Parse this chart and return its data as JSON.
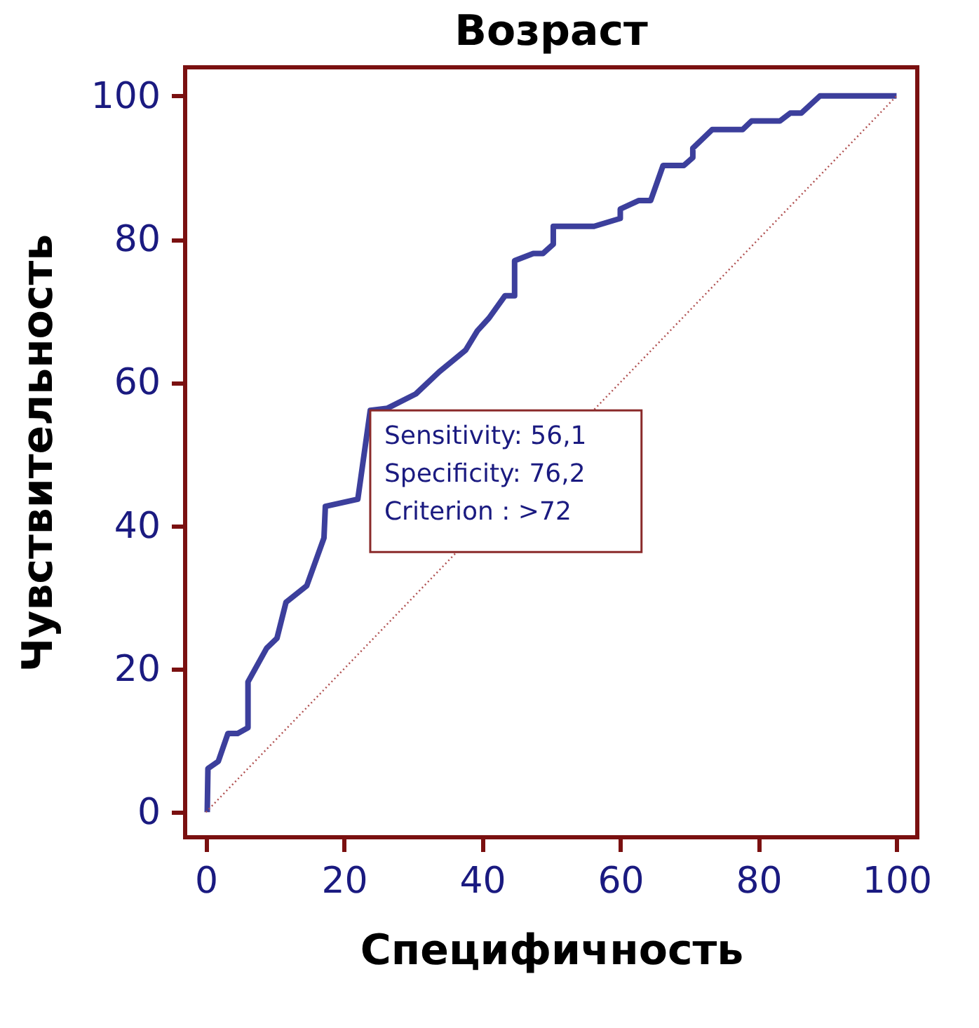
{
  "chart_data": {
    "type": "line",
    "title": "Возраст",
    "xlabel": "Специфичность",
    "ylabel": "Чувствительность",
    "xlim": [
      -3,
      103
    ],
    "ylim": [
      -3.5,
      104
    ],
    "xticks": [
      0,
      20,
      40,
      60,
      80,
      100
    ],
    "yticks": [
      0,
      20,
      40,
      60,
      80,
      100
    ],
    "grid": false,
    "legend": false,
    "series": [
      {
        "color": "#3c3f9c",
        "line_style": "solid",
        "x": [
          0.2,
          0.3,
          1.8,
          3.2,
          4.6,
          6.1,
          6.1,
          8.8,
          10.3,
          11.6,
          14.6,
          17.1,
          17.3,
          22,
          23.8,
          26.3,
          30.4,
          33.8,
          37.6,
          39.3,
          41,
          43.3,
          44.7,
          44.7,
          47.4,
          48.8,
          50.3,
          50.3,
          56.2,
          60,
          60,
          62.7,
          64.4,
          66.2,
          69.2,
          70.5,
          70.5,
          73.3,
          77.7,
          79,
          83.1,
          84.6,
          86.2,
          88.9,
          100
        ],
        "values": [
          0,
          6.1,
          7.1,
          11,
          11,
          11.8,
          18.2,
          22.9,
          24.3,
          29.3,
          31.6,
          38.3,
          42.7,
          43.7,
          56.1,
          56.4,
          58.4,
          61.5,
          64.5,
          67.2,
          69,
          72.1,
          72.1,
          77,
          78,
          78,
          79.3,
          81.8,
          81.8,
          82.9,
          84.2,
          85.4,
          85.4,
          90.3,
          90.3,
          91.4,
          92.7,
          95.3,
          95.3,
          96.5,
          96.5,
          97.6,
          97.6,
          100,
          100
        ]
      },
      {
        "color": "#b05050",
        "line_style": "dotted",
        "x": [
          0,
          100
        ],
        "values": [
          0,
          100
        ]
      }
    ],
    "annotations": [
      {
        "text": "Sensitivity: 56,1\nSpecificity: 76,2\nCriterion : >72",
        "x": 23.8,
        "y": 56.1
      }
    ]
  }
}
